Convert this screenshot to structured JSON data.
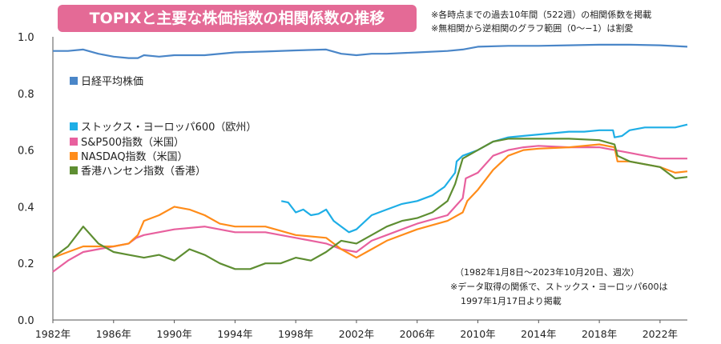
{
  "title": "TOPIXと主要な株価指数の相関係数の推移",
  "notes_top": [
    "※各時点までの過去10年間（522週）の相関係数を掲載",
    "※無相関から逆相関のグラフ範囲（0〜−1）は割愛"
  ],
  "notes_bottom": [
    "（1982年1月8日〜2023年10月20日、週次）",
    "※データ取得の関係で、ストックス・ヨーロッパ600は",
    "1997年1月17日より掲載"
  ],
  "chart_data": {
    "type": "line",
    "xlim": [
      1982,
      2023.8
    ],
    "ylim": [
      0,
      1.0
    ],
    "y_ticks": [
      "0.0",
      "0.2",
      "0.4",
      "0.6",
      "0.8",
      "1.0"
    ],
    "x_ticks": [
      "1982年",
      "1986年",
      "1990年",
      "1994年",
      "1998年",
      "2002年",
      "2006年",
      "2010年",
      "2014年",
      "2018年",
      "2022年"
    ],
    "grid": false,
    "legend_position": "left",
    "series": [
      {
        "name": "日経平均株価",
        "color": "#4a86c8",
        "points": [
          [
            1982,
            0.95
          ],
          [
            1983,
            0.95
          ],
          [
            1984,
            0.955
          ],
          [
            1985,
            0.94
          ],
          [
            1986,
            0.93
          ],
          [
            1987,
            0.925
          ],
          [
            1987.6,
            0.925
          ],
          [
            1988,
            0.935
          ],
          [
            1989,
            0.93
          ],
          [
            1990,
            0.935
          ],
          [
            1992,
            0.935
          ],
          [
            1994,
            0.945
          ],
          [
            1996,
            0.948
          ],
          [
            1998,
            0.952
          ],
          [
            2000,
            0.955
          ],
          [
            2001,
            0.94
          ],
          [
            2002,
            0.935
          ],
          [
            2003,
            0.94
          ],
          [
            2004,
            0.94
          ],
          [
            2006,
            0.945
          ],
          [
            2008,
            0.95
          ],
          [
            2009,
            0.955
          ],
          [
            2010,
            0.965
          ],
          [
            2012,
            0.968
          ],
          [
            2014,
            0.968
          ],
          [
            2016,
            0.97
          ],
          [
            2018,
            0.972
          ],
          [
            2020,
            0.972
          ],
          [
            2022,
            0.97
          ],
          [
            2023.8,
            0.965
          ]
        ]
      },
      {
        "name": "ストックス・ヨーロッパ600（欧州）",
        "color": "#1eaee6",
        "points": [
          [
            1997.05,
            0.42
          ],
          [
            1997.5,
            0.415
          ],
          [
            1998,
            0.38
          ],
          [
            1998.5,
            0.39
          ],
          [
            1999,
            0.37
          ],
          [
            1999.5,
            0.375
          ],
          [
            2000,
            0.39
          ],
          [
            2000.5,
            0.35
          ],
          [
            2001,
            0.33
          ],
          [
            2001.5,
            0.31
          ],
          [
            2002,
            0.32
          ],
          [
            2003,
            0.37
          ],
          [
            2004,
            0.39
          ],
          [
            2005,
            0.41
          ],
          [
            2006,
            0.42
          ],
          [
            2007,
            0.44
          ],
          [
            2007.8,
            0.47
          ],
          [
            2008.5,
            0.52
          ],
          [
            2008.6,
            0.56
          ],
          [
            2009,
            0.58
          ],
          [
            2010,
            0.6
          ],
          [
            2011,
            0.63
          ],
          [
            2012,
            0.645
          ],
          [
            2013,
            0.65
          ],
          [
            2014,
            0.655
          ],
          [
            2015,
            0.66
          ],
          [
            2016,
            0.665
          ],
          [
            2017,
            0.665
          ],
          [
            2018,
            0.67
          ],
          [
            2018.9,
            0.67
          ],
          [
            2019,
            0.645
          ],
          [
            2019.5,
            0.65
          ],
          [
            2020,
            0.67
          ],
          [
            2021,
            0.68
          ],
          [
            2022,
            0.68
          ],
          [
            2023,
            0.68
          ],
          [
            2023.8,
            0.69
          ]
        ]
      },
      {
        "name": "S&P500指数（米国）",
        "color": "#e8609e",
        "points": [
          [
            1982,
            0.17
          ],
          [
            1983,
            0.21
          ],
          [
            1984,
            0.24
          ],
          [
            1985,
            0.25
          ],
          [
            1986,
            0.26
          ],
          [
            1987,
            0.27
          ],
          [
            1987.5,
            0.29
          ],
          [
            1988,
            0.3
          ],
          [
            1990,
            0.32
          ],
          [
            1992,
            0.33
          ],
          [
            1994,
            0.31
          ],
          [
            1996,
            0.31
          ],
          [
            1998,
            0.29
          ],
          [
            2000,
            0.27
          ],
          [
            2001,
            0.25
          ],
          [
            2002,
            0.24
          ],
          [
            2003,
            0.28
          ],
          [
            2004,
            0.3
          ],
          [
            2006,
            0.34
          ],
          [
            2008,
            0.37
          ],
          [
            2009,
            0.43
          ],
          [
            2009.2,
            0.5
          ],
          [
            2010,
            0.52
          ],
          [
            2011,
            0.58
          ],
          [
            2012,
            0.6
          ],
          [
            2013,
            0.61
          ],
          [
            2014,
            0.615
          ],
          [
            2016,
            0.61
          ],
          [
            2018,
            0.61
          ],
          [
            2019,
            0.6
          ],
          [
            2020,
            0.59
          ],
          [
            2021,
            0.58
          ],
          [
            2022,
            0.57
          ],
          [
            2023,
            0.57
          ],
          [
            2023.8,
            0.57
          ]
        ]
      },
      {
        "name": "NASDAQ指数（米国）",
        "color": "#ff8c1a",
        "points": [
          [
            1982,
            0.22
          ],
          [
            1983,
            0.24
          ],
          [
            1984,
            0.26
          ],
          [
            1985,
            0.26
          ],
          [
            1986,
            0.26
          ],
          [
            1987,
            0.27
          ],
          [
            1987.6,
            0.3
          ],
          [
            1988,
            0.35
          ],
          [
            1989,
            0.37
          ],
          [
            1990,
            0.4
          ],
          [
            1991,
            0.39
          ],
          [
            1992,
            0.37
          ],
          [
            1993,
            0.34
          ],
          [
            1994,
            0.33
          ],
          [
            1996,
            0.33
          ],
          [
            1998,
            0.3
          ],
          [
            2000,
            0.29
          ],
          [
            2001,
            0.25
          ],
          [
            2002,
            0.22
          ],
          [
            2003,
            0.25
          ],
          [
            2004,
            0.28
          ],
          [
            2006,
            0.32
          ],
          [
            2008,
            0.35
          ],
          [
            2009,
            0.38
          ],
          [
            2009.3,
            0.42
          ],
          [
            2010,
            0.46
          ],
          [
            2011,
            0.53
          ],
          [
            2012,
            0.58
          ],
          [
            2013,
            0.6
          ],
          [
            2014,
            0.605
          ],
          [
            2016,
            0.61
          ],
          [
            2018,
            0.62
          ],
          [
            2019,
            0.61
          ],
          [
            2019.2,
            0.56
          ],
          [
            2020,
            0.56
          ],
          [
            2021,
            0.55
          ],
          [
            2022,
            0.54
          ],
          [
            2023,
            0.52
          ],
          [
            2023.8,
            0.525
          ]
        ]
      },
      {
        "name": "香港ハンセン指数（香港）",
        "color": "#5e8e32",
        "points": [
          [
            1982,
            0.22
          ],
          [
            1983,
            0.26
          ],
          [
            1984,
            0.33
          ],
          [
            1985,
            0.27
          ],
          [
            1986,
            0.24
          ],
          [
            1987,
            0.23
          ],
          [
            1988,
            0.22
          ],
          [
            1989,
            0.23
          ],
          [
            1990,
            0.21
          ],
          [
            1991,
            0.25
          ],
          [
            1992,
            0.23
          ],
          [
            1993,
            0.2
          ],
          [
            1994,
            0.18
          ],
          [
            1995,
            0.18
          ],
          [
            1996,
            0.2
          ],
          [
            1997,
            0.2
          ],
          [
            1998,
            0.22
          ],
          [
            1999,
            0.21
          ],
          [
            2000,
            0.24
          ],
          [
            2001,
            0.28
          ],
          [
            2002,
            0.27
          ],
          [
            2003,
            0.3
          ],
          [
            2004,
            0.33
          ],
          [
            2005,
            0.35
          ],
          [
            2006,
            0.36
          ],
          [
            2007,
            0.38
          ],
          [
            2008,
            0.42
          ],
          [
            2008.5,
            0.48
          ],
          [
            2009,
            0.57
          ],
          [
            2010,
            0.6
          ],
          [
            2011,
            0.63
          ],
          [
            2012,
            0.64
          ],
          [
            2013,
            0.64
          ],
          [
            2014,
            0.64
          ],
          [
            2016,
            0.64
          ],
          [
            2018,
            0.635
          ],
          [
            2019,
            0.62
          ],
          [
            2019.2,
            0.58
          ],
          [
            2020,
            0.56
          ],
          [
            2021,
            0.55
          ],
          [
            2022,
            0.54
          ],
          [
            2023,
            0.5
          ],
          [
            2023.8,
            0.505
          ]
        ]
      }
    ]
  }
}
